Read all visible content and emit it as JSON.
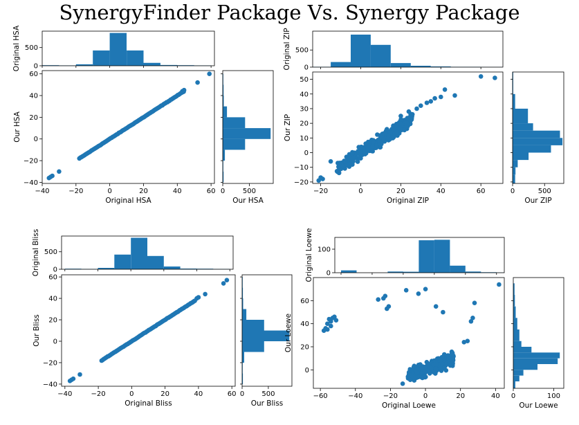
{
  "title": "SynergyFinder Package Vs. Synergy Package",
  "colors": {
    "marker": "#1f77b4",
    "axis": "#000000"
  },
  "chart_data": [
    {
      "name": "hsa",
      "type": "scatter",
      "xlabel": "Original HSA",
      "ylabel": "Our HSA",
      "xlim": [
        -40,
        62
      ],
      "ylim": [
        -41,
        63
      ],
      "xticks": [
        -40,
        -20,
        0,
        20,
        40,
        60
      ],
      "yticks": [
        -40,
        -20,
        0,
        20,
        40,
        60
      ],
      "points": {
        "line": {
          "from": -18,
          "to": 44,
          "step": 0.6,
          "jitter": 0.8
        },
        "extra": [
          [
            -36,
            -36
          ],
          [
            -35,
            -35
          ],
          [
            -34,
            -34
          ],
          [
            -30,
            -30
          ],
          [
            52,
            52
          ],
          [
            59,
            60
          ],
          [
            43,
            44
          ],
          [
            44,
            45
          ]
        ]
      },
      "top_hist": {
        "label": "Original HSA",
        "yticks": [
          0,
          500
        ],
        "ylim": [
          0,
          950
        ],
        "bins": [
          [
            -40,
            -30,
            15
          ],
          [
            -30,
            -20,
            10
          ],
          [
            -20,
            -10,
            40
          ],
          [
            -10,
            0,
            420
          ],
          [
            0,
            10,
            900
          ],
          [
            10,
            20,
            420
          ],
          [
            20,
            30,
            80
          ],
          [
            30,
            40,
            20
          ],
          [
            40,
            50,
            15
          ],
          [
            50,
            60,
            10
          ]
        ]
      },
      "right_hist": {
        "label": "Our HSA",
        "xticks": [
          0,
          500
        ],
        "xlim": [
          0,
          950
        ],
        "bins": [
          [
            -40,
            -30,
            15
          ],
          [
            -30,
            -20,
            10
          ],
          [
            -20,
            -10,
            40
          ],
          [
            -10,
            0,
            420
          ],
          [
            0,
            10,
            900
          ],
          [
            10,
            20,
            420
          ],
          [
            20,
            30,
            80
          ],
          [
            30,
            40,
            20
          ],
          [
            40,
            50,
            15
          ],
          [
            50,
            60,
            10
          ]
        ]
      }
    },
    {
      "name": "zip",
      "type": "scatter",
      "xlabel": "Original ZIP",
      "ylabel": "Our ZIP",
      "xlim": [
        -24,
        71
      ],
      "ylim": [
        -21,
        55
      ],
      "xticks": [
        -20,
        0,
        20,
        40,
        60
      ],
      "yticks": [
        -20,
        -10,
        0,
        10,
        20,
        30,
        40,
        50
      ],
      "points": {
        "cloud": {
          "xmin": -12,
          "xmax": 26,
          "slope": 0.9,
          "spread": 6,
          "count": 340
        },
        "extra": [
          [
            -20,
            -17
          ],
          [
            -21,
            -19
          ],
          [
            -19,
            -18
          ],
          [
            -15,
            -6
          ],
          [
            28,
            30
          ],
          [
            30,
            32
          ],
          [
            33,
            34
          ],
          [
            35,
            35
          ],
          [
            37,
            37
          ],
          [
            40,
            38
          ],
          [
            42,
            43
          ],
          [
            47,
            39
          ],
          [
            60,
            52
          ],
          [
            67,
            51
          ],
          [
            20,
            25
          ],
          [
            24,
            28
          ]
        ]
      },
      "top_hist": {
        "label": "Original ZIP",
        "yticks": [
          0,
          500
        ],
        "ylim": [
          0,
          1050
        ],
        "bins": [
          [
            -24,
            -15,
            10
          ],
          [
            -15,
            -5,
            150
          ],
          [
            -5,
            5,
            950
          ],
          [
            5,
            15,
            650
          ],
          [
            15,
            25,
            120
          ],
          [
            25,
            35,
            40
          ],
          [
            35,
            45,
            20
          ],
          [
            45,
            60,
            10
          ],
          [
            60,
            71,
            5
          ]
        ]
      },
      "right_hist": {
        "label": "Our ZIP",
        "xticks": [
          0,
          500
        ],
        "xlim": [
          0,
          800
        ],
        "bins": [
          [
            -21,
            -15,
            40
          ],
          [
            -15,
            -10,
            45
          ],
          [
            -10,
            -5,
            80
          ],
          [
            -5,
            0,
            250
          ],
          [
            0,
            5,
            600
          ],
          [
            5,
            10,
            780
          ],
          [
            10,
            15,
            740
          ],
          [
            15,
            20,
            320
          ],
          [
            20,
            30,
            240
          ],
          [
            30,
            40,
            40
          ],
          [
            40,
            55,
            10
          ]
        ]
      }
    },
    {
      "name": "bliss",
      "type": "scatter",
      "xlabel": "Original Bliss",
      "ylabel": "Our Bliss",
      "xlim": [
        -42,
        62
      ],
      "ylim": [
        -42,
        62
      ],
      "xticks": [
        -40,
        -20,
        0,
        20,
        40,
        60
      ],
      "yticks": [
        -40,
        -20,
        0,
        20,
        40,
        60
      ],
      "points": {
        "line": {
          "from": -18,
          "to": 38,
          "step": 0.6,
          "jitter": 0.8
        },
        "extra": [
          [
            -37,
            -37
          ],
          [
            -36,
            -36
          ],
          [
            -35,
            -35
          ],
          [
            -31,
            -31
          ],
          [
            39,
            40
          ],
          [
            40,
            41
          ],
          [
            44,
            44
          ],
          [
            55,
            54
          ],
          [
            57,
            57
          ]
        ]
      },
      "top_hist": {
        "label": "Original Bliss",
        "yticks": [
          0,
          500
        ],
        "ylim": [
          0,
          950
        ],
        "bins": [
          [
            -40,
            -30,
            15
          ],
          [
            -30,
            -20,
            10
          ],
          [
            -20,
            -10,
            40
          ],
          [
            -10,
            0,
            420
          ],
          [
            0,
            10,
            900
          ],
          [
            10,
            20,
            380
          ],
          [
            20,
            30,
            80
          ],
          [
            30,
            40,
            20
          ],
          [
            40,
            50,
            15
          ],
          [
            50,
            60,
            10
          ]
        ]
      },
      "right_hist": {
        "label": "Our Bliss",
        "xticks": [
          0,
          500
        ],
        "xlim": [
          0,
          950
        ],
        "bins": [
          [
            -40,
            -30,
            15
          ],
          [
            -30,
            -20,
            10
          ],
          [
            -20,
            -10,
            40
          ],
          [
            -10,
            0,
            420
          ],
          [
            0,
            10,
            900
          ],
          [
            10,
            20,
            420
          ],
          [
            20,
            30,
            80
          ],
          [
            30,
            40,
            20
          ],
          [
            40,
            50,
            15
          ],
          [
            50,
            60,
            10
          ]
        ]
      }
    },
    {
      "name": "loewe",
      "type": "scatter",
      "xlabel": "Original Loewe",
      "ylabel": "Our Loewe",
      "xlim": [
        -64,
        45
      ],
      "ylim": [
        -16,
        80
      ],
      "xticks": [
        -60,
        -40,
        -20,
        0,
        20,
        40
      ],
      "yticks": [
        0,
        20,
        40,
        60
      ],
      "points": {
        "cloud": {
          "xmin": -10,
          "xmax": 16,
          "slope": 0.6,
          "spread": 9,
          "count": 230
        },
        "extra": [
          [
            -58,
            34
          ],
          [
            -57,
            36
          ],
          [
            -56,
            40
          ],
          [
            -55,
            44
          ],
          [
            -54,
            42
          ],
          [
            -53,
            45
          ],
          [
            -52,
            46
          ],
          [
            -51,
            43
          ],
          [
            -56,
            35
          ],
          [
            -54,
            38
          ],
          [
            -27,
            61
          ],
          [
            -24,
            62
          ],
          [
            -23,
            64
          ],
          [
            -22,
            53
          ],
          [
            -21,
            55
          ],
          [
            -11,
            69
          ],
          [
            -4,
            66
          ],
          [
            0,
            70
          ],
          [
            6,
            55
          ],
          [
            10,
            50
          ],
          [
            28,
            58
          ],
          [
            27,
            45
          ],
          [
            26,
            42
          ],
          [
            42,
            74
          ],
          [
            -13,
            -12
          ],
          [
            22,
            24
          ],
          [
            24,
            25
          ]
        ]
      },
      "top_hist": {
        "label": "Original Loewe",
        "yticks": [
          0,
          100
        ],
        "ylim": [
          0,
          150
        ],
        "bins": [
          [
            -60,
            -50,
            10
          ],
          [
            -50,
            -40,
            0
          ],
          [
            -40,
            -30,
            0
          ],
          [
            -30,
            -20,
            5
          ],
          [
            -20,
            -10,
            4
          ],
          [
            -10,
            0,
            138
          ],
          [
            0,
            10,
            140
          ],
          [
            10,
            20,
            30
          ],
          [
            20,
            30,
            5
          ],
          [
            30,
            40,
            2
          ],
          [
            40,
            45,
            1
          ]
        ]
      },
      "right_hist": {
        "label": "Our Loewe",
        "xticks": [
          0,
          100
        ],
        "xlim": [
          0,
          125
        ],
        "bins": [
          [
            -16,
            -10,
            5
          ],
          [
            -10,
            -5,
            15
          ],
          [
            -5,
            0,
            25
          ],
          [
            0,
            5,
            60
          ],
          [
            5,
            10,
            110
          ],
          [
            10,
            15,
            115
          ],
          [
            15,
            20,
            45
          ],
          [
            20,
            25,
            20
          ],
          [
            25,
            35,
            15
          ],
          [
            35,
            45,
            10
          ],
          [
            45,
            55,
            6
          ],
          [
            55,
            65,
            4
          ],
          [
            65,
            75,
            3
          ]
        ]
      }
    }
  ]
}
